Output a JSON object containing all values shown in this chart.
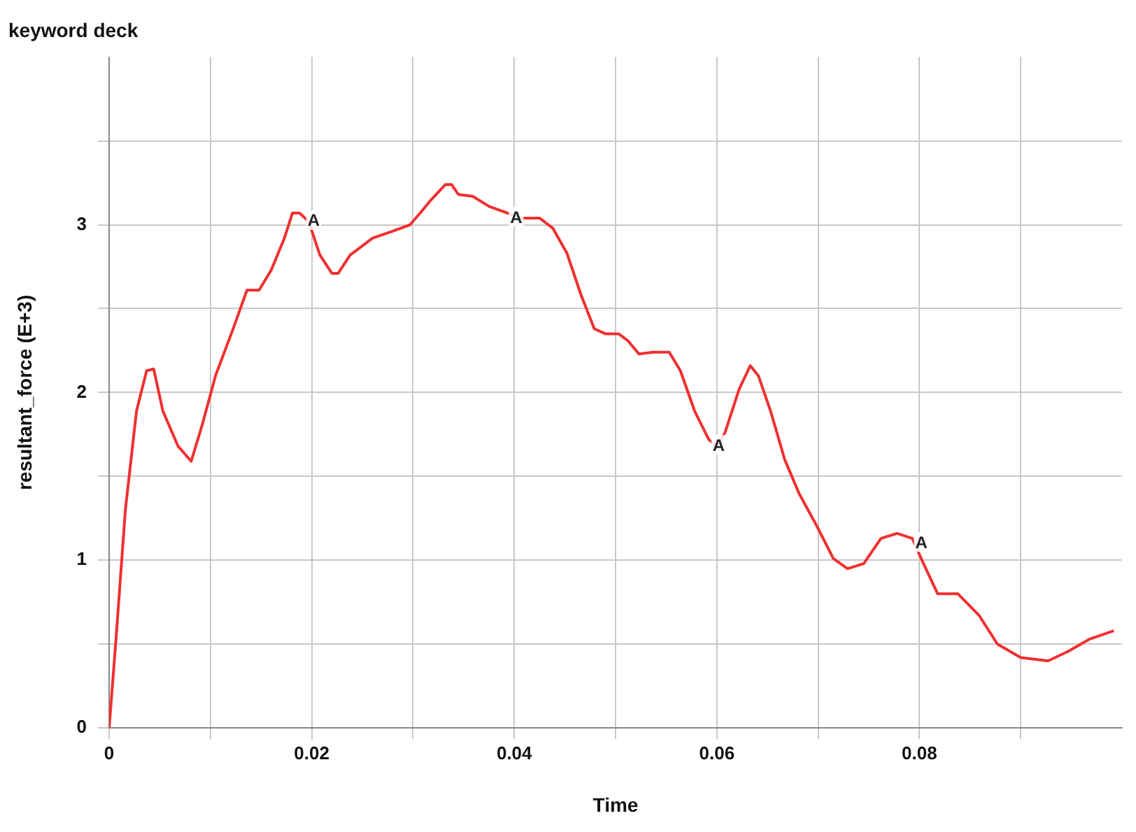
{
  "chart_data": {
    "type": "line",
    "title": "keyword deck",
    "xlabel": "Time",
    "ylabel": "resultant_force (E+3)",
    "xlim": [
      0,
      0.1
    ],
    "ylim": [
      0,
      4
    ],
    "xticks": [
      0,
      {
        "value": 0.01,
        "label": null
      },
      0.02,
      {
        "value": 0.03,
        "label": null
      },
      0.04,
      {
        "value": 0.05,
        "label": null
      },
      0.06,
      {
        "value": 0.07,
        "label": null
      },
      0.08,
      {
        "value": 0.09,
        "label": null
      }
    ],
    "yticks": [
      0,
      {
        "value": 0.5,
        "label": null
      },
      1,
      {
        "value": 1.5,
        "label": null
      },
      2,
      {
        "value": 2.5,
        "label": null
      },
      3,
      {
        "value": 3.5,
        "label": null
      }
    ],
    "grid": true,
    "legend": false,
    "marker": "none",
    "line_style": "solid",
    "annotations": [
      {
        "text": "A",
        "x": 0.02,
        "y": 3.02
      },
      {
        "text": "A",
        "x": 0.04,
        "y": 3.04
      },
      {
        "text": "A",
        "x": 0.06,
        "y": 1.68
      },
      {
        "text": "A",
        "x": 0.08,
        "y": 1.1
      }
    ],
    "series": [
      {
        "color": "#f03030",
        "x": [
          0,
          0.0007,
          0.0016,
          0.0027,
          0.0037,
          0.0044,
          0.0053,
          0.0068,
          0.0081,
          0.0092,
          0.0105,
          0.0123,
          0.0136,
          0.0148,
          0.016,
          0.0173,
          0.0181,
          0.0188,
          0.0197,
          0.0208,
          0.022,
          0.0226,
          0.0238,
          0.026,
          0.0279,
          0.0297,
          0.0307,
          0.0318,
          0.0332,
          0.0338,
          0.0345,
          0.0359,
          0.0375,
          0.0393,
          0.0407,
          0.0425,
          0.0438,
          0.0452,
          0.0466,
          0.0479,
          0.049,
          0.0503,
          0.0512,
          0.0523,
          0.0537,
          0.0553,
          0.0564,
          0.0578,
          0.0592,
          0.06,
          0.0608,
          0.0622,
          0.0633,
          0.0641,
          0.0653,
          0.0667,
          0.0681,
          0.0699,
          0.0715,
          0.0729,
          0.0745,
          0.0762,
          0.0778,
          0.0793,
          0.0804,
          0.0818,
          0.0838,
          0.0859,
          0.0877,
          0.09,
          0.0927,
          0.0948,
          0.0968,
          0.0992
        ],
        "values": [
          0,
          0.55,
          1.3,
          1.89,
          2.13,
          2.14,
          1.89,
          1.68,
          1.59,
          1.81,
          2.1,
          2.39,
          2.61,
          2.61,
          2.73,
          2.92,
          3.07,
          3.07,
          3.02,
          2.82,
          2.71,
          2.71,
          2.82,
          2.92,
          2.96,
          3.0,
          3.07,
          3.15,
          3.24,
          3.24,
          3.18,
          3.17,
          3.11,
          3.07,
          3.04,
          3.04,
          2.98,
          2.83,
          2.58,
          2.38,
          2.35,
          2.35,
          2.31,
          2.23,
          2.24,
          2.24,
          2.13,
          1.89,
          1.72,
          1.68,
          1.76,
          2.02,
          2.16,
          2.1,
          1.89,
          1.6,
          1.4,
          1.2,
          1.01,
          0.95,
          0.98,
          1.13,
          1.16,
          1.13,
          0.98,
          0.8,
          0.8,
          0.67,
          0.5,
          0.42,
          0.4,
          0.46,
          0.53,
          0.58
        ]
      }
    ]
  }
}
